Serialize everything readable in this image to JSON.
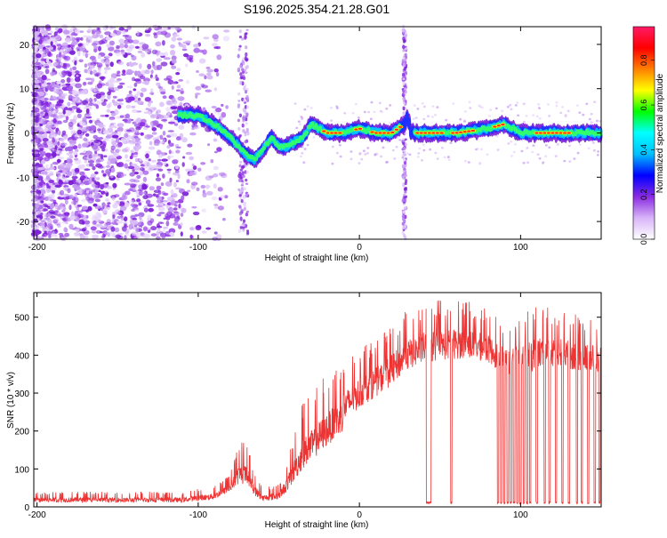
{
  "title": "S196.2025.354.21.28.G01",
  "chart_data": [
    {
      "type": "heatmap",
      "name": "spectrogram",
      "title": "S196.2025.354.21.28.G01",
      "xlabel": "Height of straight line (km)",
      "ylabel": "Frequency (Hz)",
      "xlim": [
        -202,
        150
      ],
      "ylim": [
        -24,
        24
      ],
      "x_ticks": [
        -200,
        -100,
        0,
        100
      ],
      "x_tick_labels": [
        "-200",
        "-100",
        "0",
        "100"
      ],
      "y_ticks": [
        20,
        10,
        0,
        -10,
        -20
      ],
      "y_tick_labels": [
        "20",
        "10",
        "0",
        "-10",
        "-20"
      ],
      "ridge": {
        "x": [
          -110,
          -100,
          -90,
          -80,
          -70,
          -65,
          -60,
          -55,
          -50,
          -45,
          -40,
          -35,
          -30,
          -25,
          -20,
          -10,
          0,
          10,
          20,
          28,
          30,
          32,
          40,
          60,
          80,
          90,
          100,
          120,
          150
        ],
        "freq": [
          4,
          4,
          2,
          -1,
          -5,
          -6,
          -4,
          -1,
          -3,
          -3,
          -2,
          -1,
          2,
          1,
          0,
          0,
          1,
          0,
          0,
          2,
          4,
          0,
          0,
          0,
          1,
          2,
          0,
          0,
          0
        ]
      },
      "colorbar": {
        "label": "Normalized spectral amplitude",
        "range": [
          0.0,
          0.95
        ],
        "ticks": [
          0.0,
          0.2,
          0.4,
          0.6,
          0.8
        ],
        "tick_labels": [
          "0.0",
          "0.2",
          "0.4",
          "0.6",
          "0.8"
        ],
        "colors": [
          "#ffffff",
          "#d8b4f8",
          "#8a2be2",
          "#0000ff",
          "#00bfff",
          "#00ffff",
          "#00ff00",
          "#ffff00",
          "#ff8000",
          "#ff0000",
          "#ff1a66"
        ]
      }
    },
    {
      "type": "line",
      "name": "snr",
      "xlabel": "Height of straight line (km)",
      "ylabel": "SNR (10 * v/v)",
      "xlim": [
        -202,
        150
      ],
      "ylim": [
        0,
        565
      ],
      "x_ticks": [
        -200,
        -100,
        0,
        100
      ],
      "x_tick_labels": [
        "-200",
        "-100",
        "0",
        "100"
      ],
      "y_ticks": [
        0,
        100,
        200,
        300,
        400,
        500
      ],
      "y_tick_labels": [
        "0",
        "100",
        "200",
        "300",
        "400",
        "500"
      ],
      "color": "#ee3333",
      "envelope": {
        "x": [
          -202,
          -150,
          -110,
          -90,
          -80,
          -75,
          -70,
          -65,
          -60,
          -50,
          -45,
          -35,
          -30,
          -20,
          -10,
          0,
          10,
          20,
          30,
          40,
          60,
          70,
          80,
          90,
          100,
          110,
          120,
          150
        ],
        "low": [
          12,
          12,
          12,
          20,
          40,
          60,
          60,
          30,
          15,
          20,
          40,
          100,
          120,
          160,
          200,
          240,
          270,
          300,
          340,
          360,
          370,
          370,
          360,
          330,
          330,
          340,
          350,
          330
        ],
        "high": [
          40,
          40,
          40,
          55,
          90,
          170,
          170,
          90,
          50,
          60,
          120,
          280,
          300,
          360,
          380,
          420,
          440,
          480,
          520,
          540,
          550,
          540,
          520,
          480,
          500,
          540,
          520,
          500
        ]
      },
      "dropouts": [
        42,
        43,
        44,
        57,
        86,
        88,
        90,
        92,
        94,
        96,
        98,
        100,
        102,
        104,
        106,
        110,
        115,
        118,
        122,
        126,
        130,
        135,
        138,
        142,
        146,
        149
      ]
    }
  ]
}
